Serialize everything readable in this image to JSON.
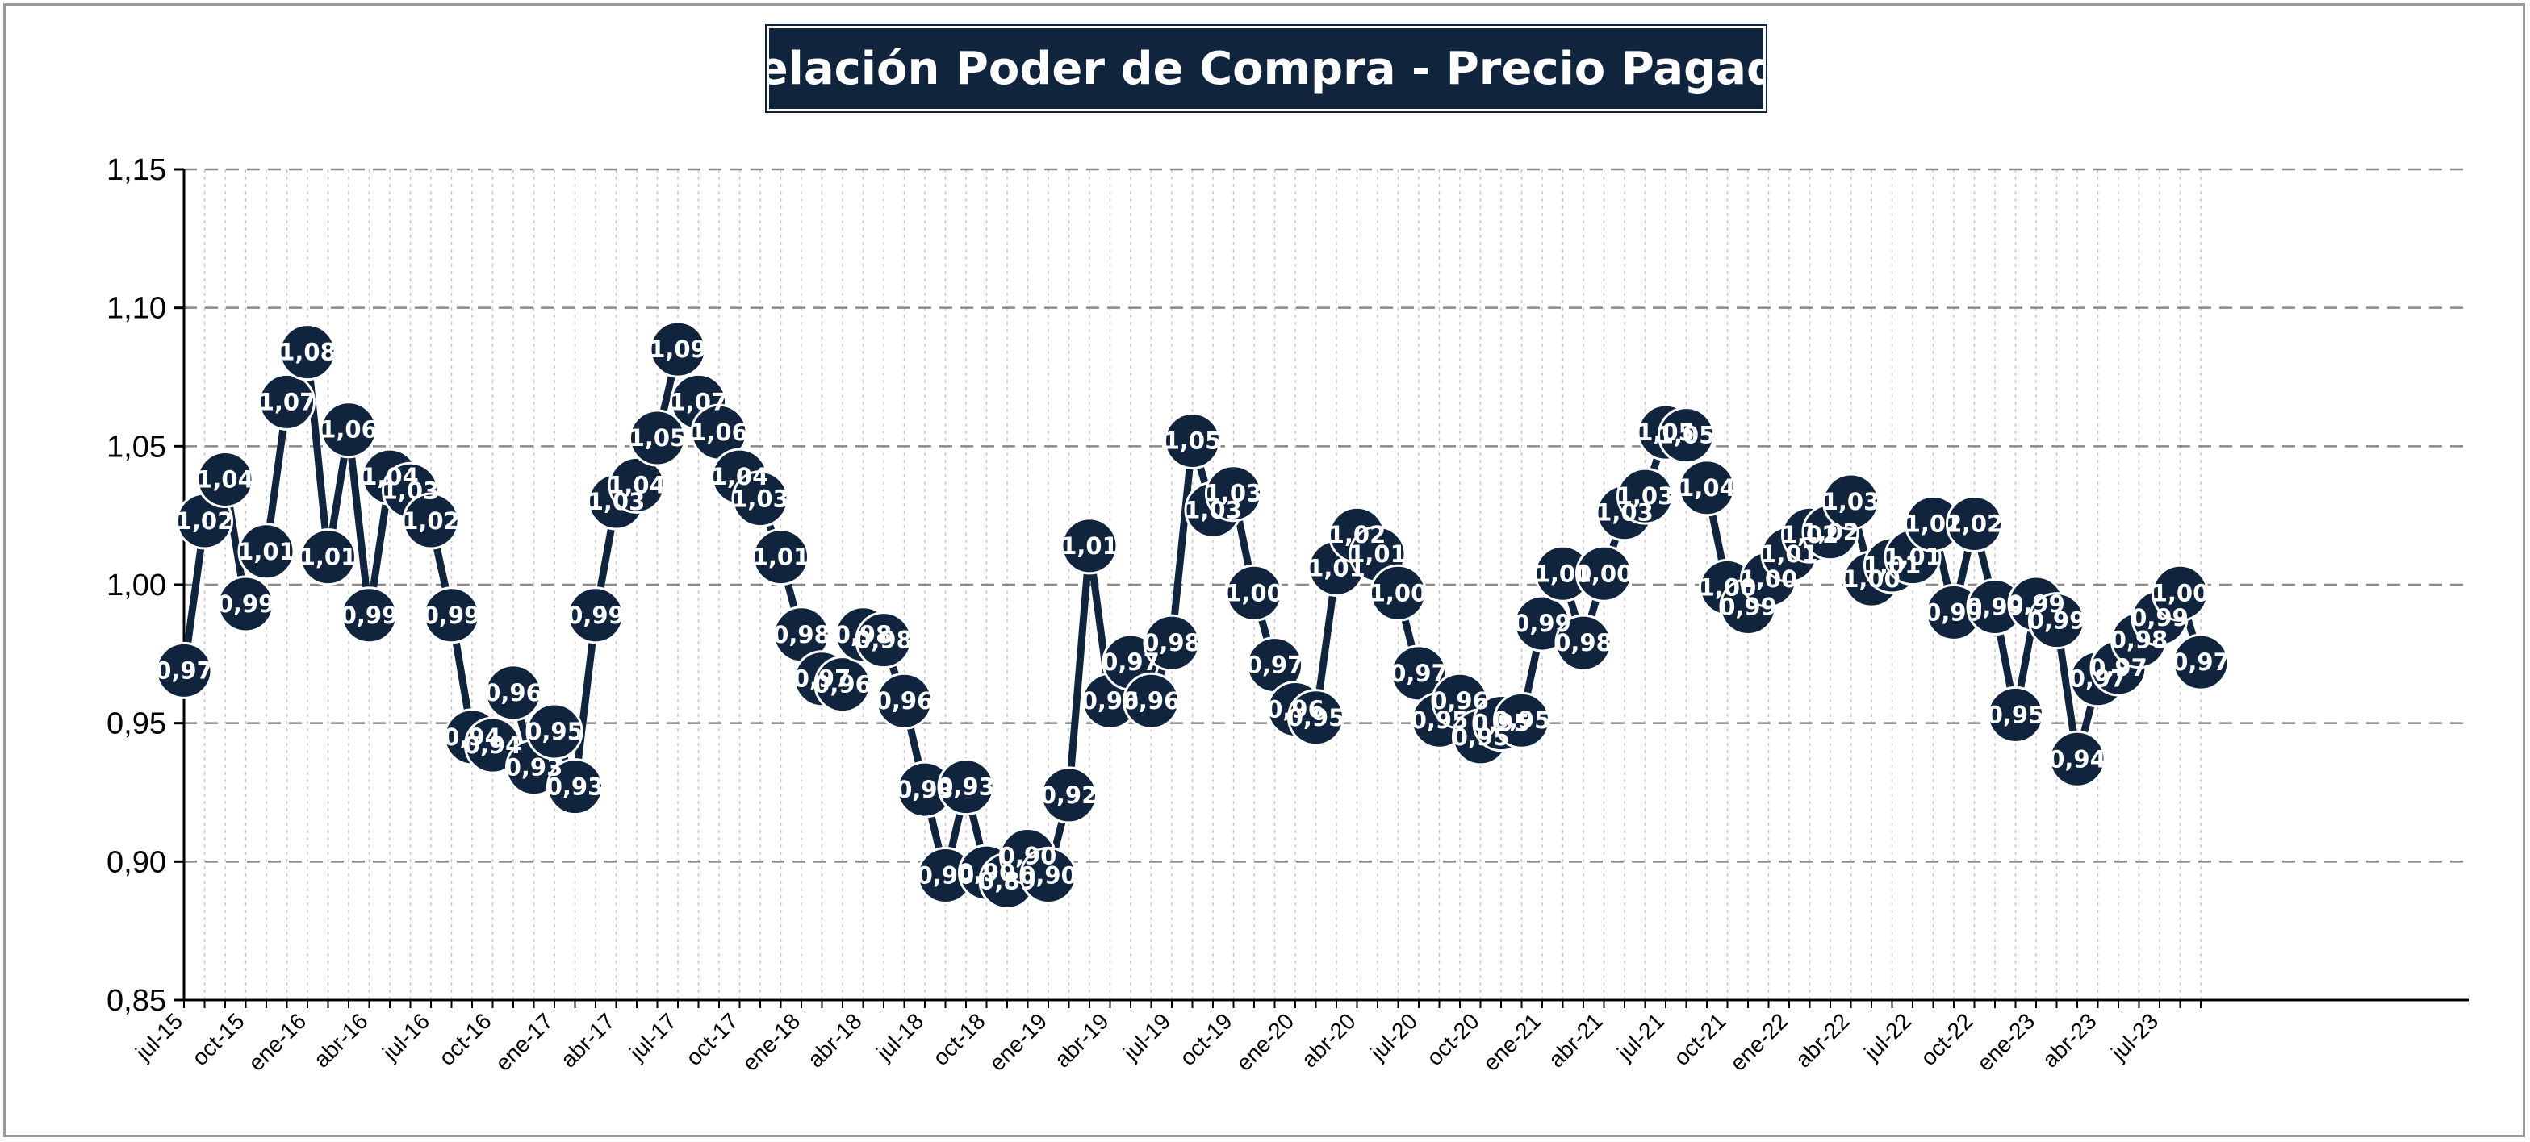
{
  "chart_data": {
    "type": "line",
    "title": "Relación Poder de Compra - Precio Pagado",
    "xlabel": "",
    "ylabel": "",
    "ylim": [
      0.85,
      1.15
    ],
    "y_ticks": [
      0.85,
      0.9,
      0.95,
      1.0,
      1.05,
      1.1,
      1.15
    ],
    "y_tick_labels": [
      "0,85",
      "0,90",
      "0,95",
      "1,00",
      "1,05",
      "1,10",
      "1,15"
    ],
    "x_tick_labels": [
      "jul-15",
      "oct-15",
      "ene-16",
      "abr-16",
      "jul-16",
      "oct-16",
      "ene-17",
      "abr-17",
      "jul-17",
      "oct-17",
      "ene-18",
      "abr-18",
      "jul-18",
      "oct-18",
      "ene-19",
      "abr-19",
      "jul-19",
      "oct-19",
      "ene-20",
      "abr-20",
      "jul-20",
      "oct-20",
      "ene-21",
      "abr-21",
      "jul-21",
      "oct-21",
      "ene-22",
      "abr-22",
      "jul-22",
      "oct-22",
      "ene-23",
      "abr-23",
      "jul-23"
    ],
    "grid": "horizontal dashed + vertical dotted",
    "legend": "none",
    "colors": {
      "line": "#10243e",
      "marker": "#10243e",
      "marker_border": "#ffffff",
      "title_bg": "#10243e"
    },
    "x": [
      "jul-15",
      "ago-15",
      "sep-15",
      "oct-15",
      "nov-15",
      "dic-15",
      "ene-16",
      "feb-16",
      "mar-16",
      "abr-16",
      "may-16",
      "jun-16",
      "jul-16",
      "ago-16",
      "sep-16",
      "oct-16",
      "nov-16",
      "dic-16",
      "ene-17",
      "feb-17",
      "mar-17",
      "abr-17",
      "may-17",
      "jun-17",
      "jul-17",
      "ago-17",
      "sep-17",
      "oct-17",
      "nov-17",
      "dic-17",
      "ene-18",
      "feb-18",
      "mar-18",
      "abr-18",
      "may-18",
      "jun-18",
      "jul-18",
      "ago-18",
      "sep-18",
      "oct-18",
      "nov-18",
      "dic-18",
      "ene-19",
      "feb-19",
      "mar-19",
      "abr-19",
      "may-19",
      "jun-19",
      "jul-19",
      "ago-19",
      "sep-19",
      "oct-19",
      "nov-19",
      "dic-19",
      "ene-20",
      "feb-20",
      "mar-20",
      "abr-20",
      "may-20",
      "jun-20",
      "jul-20",
      "ago-20",
      "sep-20",
      "oct-20",
      "nov-20",
      "dic-20",
      "ene-21",
      "feb-21",
      "mar-21",
      "abr-21",
      "may-21",
      "jun-21",
      "jul-21",
      "ago-21",
      "sep-21",
      "oct-21",
      "nov-21",
      "dic-21",
      "ene-22",
      "feb-22",
      "mar-22",
      "abr-22",
      "may-22",
      "jun-22",
      "jul-22",
      "ago-22",
      "sep-22",
      "oct-22",
      "nov-22",
      "dic-22",
      "ene-23",
      "feb-23",
      "mar-23",
      "abr-23",
      "may-23",
      "jun-23",
      "jul-23",
      "ago-23",
      "sep-23"
    ],
    "values": [
      0.969,
      1.023,
      1.038,
      0.993,
      1.012,
      1.066,
      1.084,
      1.01,
      1.056,
      0.989,
      1.039,
      1.034,
      1.023,
      0.989,
      0.945,
      0.942,
      0.961,
      0.934,
      0.947,
      0.927,
      0.989,
      1.03,
      1.036,
      1.053,
      1.085,
      1.066,
      1.055,
      1.039,
      1.031,
      1.01,
      0.982,
      0.966,
      0.964,
      0.982,
      0.98,
      0.958,
      0.926,
      0.895,
      0.927,
      0.896,
      0.893,
      0.902,
      0.895,
      0.924,
      1.014,
      0.958,
      0.972,
      0.958,
      0.979,
      1.052,
      1.027,
      1.033,
      0.997,
      0.971,
      0.955,
      0.952,
      1.006,
      1.018,
      1.011,
      0.997,
      0.968,
      0.951,
      0.958,
      0.945,
      0.95,
      0.951,
      0.986,
      1.004,
      0.979,
      1.004,
      1.026,
      1.032,
      1.055,
      1.054,
      1.035,
      0.999,
      0.992,
      1.002,
      1.011,
      1.018,
      1.019,
      1.03,
      1.002,
      1.007,
      1.01,
      1.022,
      0.99,
      1.022,
      0.992,
      0.953,
      0.993,
      0.987,
      0.937,
      0.966,
      0.97,
      0.98,
      0.988,
      0.997,
      0.972
    ],
    "data_labels": [
      "0,97",
      "1,02",
      "1,04",
      "0,99",
      "1,01",
      "1,07",
      "1,08",
      "1,01",
      "1,06",
      "0,99",
      "1,04",
      "1,03",
      "1,02",
      "0,99",
      "0,94",
      "0,94",
      "0,96",
      "0,93",
      "0,95",
      "0,93",
      "0,99",
      "1,03",
      "1,04",
      "1,05",
      "1,09",
      "1,07",
      "1,06",
      "1,04",
      "1,03",
      "1,01",
      "0,98",
      "0,97",
      "0,96",
      "0,98",
      "0,98",
      "0,96",
      "0,93",
      "0,90",
      "0,93",
      "0,90",
      "0,89",
      "0,90",
      "0,90",
      "0,92",
      "1,01",
      "0,96",
      "0,97",
      "0,96",
      "0,98",
      "1,05",
      "1,03",
      "1,03",
      "1,00",
      "0,97",
      "0,96",
      "0,95",
      "1,01",
      "1,02",
      "1,01",
      "1,00",
      "0,97",
      "0,95",
      "0,96",
      "0,95",
      "0,95",
      "0,95",
      "0,99",
      "1,00",
      "0,98",
      "1,00",
      "1,03",
      "1,03",
      "1,05",
      "1,05",
      "1,04",
      "1,00",
      "0,99",
      "1,00",
      "1,01",
      "1,02",
      "1,02",
      "1,03",
      "1,00",
      "1,01",
      "1,01",
      "1,02",
      "0,99",
      "1,02",
      "0,99",
      "0,95",
      "0,99",
      "0,99",
      "0,94",
      "0,97",
      "0,97",
      "0,98",
      "0,99",
      "1,00",
      "0,97"
    ]
  }
}
